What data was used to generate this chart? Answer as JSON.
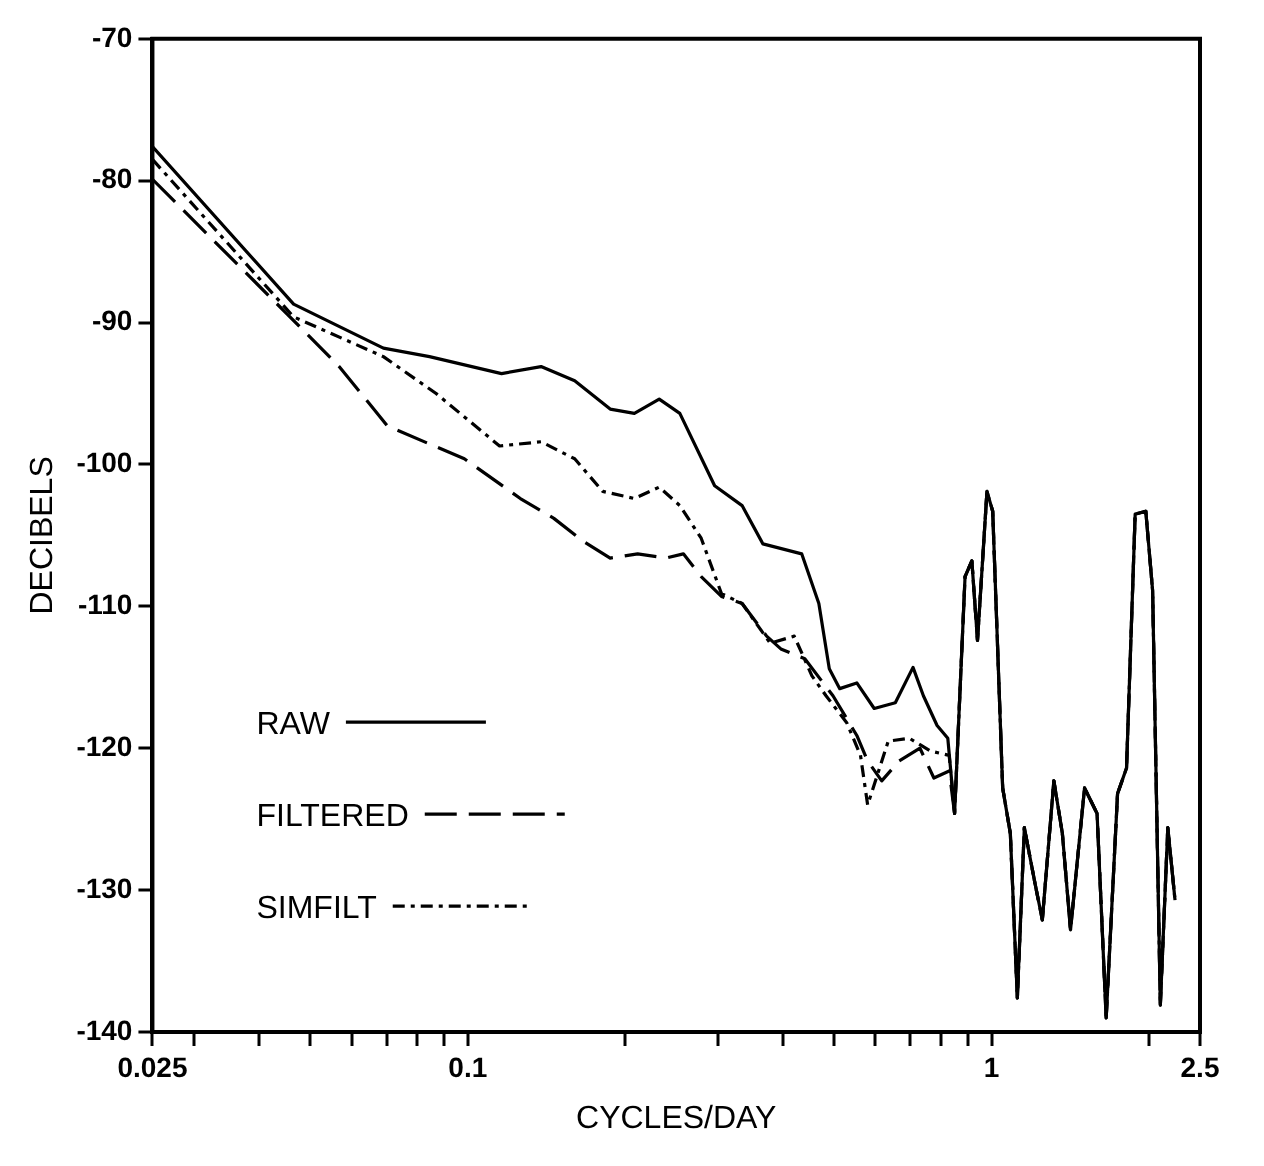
{
  "chart_data": {
    "type": "line",
    "xlabel": "CYCLES/DAY",
    "ylabel": "DECIBELS",
    "log": "x",
    "xlim": [
      0.025,
      2.5
    ],
    "ylim": [
      -140,
      -70
    ],
    "xticks": [
      0.025,
      {
        "value": 0.03,
        "label": null
      },
      {
        "value": 0.04,
        "label": null
      },
      {
        "value": 0.05,
        "label": null
      },
      {
        "value": 0.06,
        "label": null
      },
      {
        "value": 0.07,
        "label": null
      },
      {
        "value": 0.08,
        "label": null
      },
      {
        "value": 0.09,
        "label": null
      },
      0.1,
      {
        "value": 0.2,
        "label": null
      },
      {
        "value": 0.3,
        "label": null
      },
      {
        "value": 0.4,
        "label": null
      },
      {
        "value": 0.5,
        "label": null
      },
      {
        "value": 0.6,
        "label": null
      },
      {
        "value": 0.7,
        "label": null
      },
      {
        "value": 0.8,
        "label": null
      },
      {
        "value": 0.9,
        "label": null
      },
      1,
      {
        "value": 2,
        "label": null
      },
      2.5
    ],
    "yticks": [
      -140,
      -130,
      -120,
      -110,
      -100,
      -90,
      -80,
      -70
    ],
    "grid": false,
    "legend": "bottom left",
    "marker": "none",
    "series": [
      {
        "name": "RAW",
        "color": "#000000",
        "line_style": "solid",
        "x": [
          0.025,
          0.0465,
          0.069,
          0.0845,
          0.116,
          0.138,
          0.16,
          0.187,
          0.208,
          0.232,
          0.254,
          0.296,
          0.334,
          0.366,
          0.434,
          0.468,
          0.49,
          0.513,
          0.553,
          0.597,
          0.655,
          0.708,
          0.741,
          0.787,
          0.825,
          0.85,
          0.89,
          0.917,
          0.94,
          0.98,
          1.005,
          1.05,
          1.086,
          1.12,
          1.155,
          1.21,
          1.25,
          1.315,
          1.365,
          1.415,
          1.505,
          1.59,
          1.655,
          1.74,
          1.81,
          1.88,
          1.97,
          2.03,
          2.1,
          2.17,
          2.24
        ],
        "values": [
          -77.6,
          -88.7,
          -91.8,
          -92.4,
          -93.6,
          -93.1,
          -94.1,
          -96.1,
          -96.4,
          -95.4,
          -96.4,
          -101.5,
          -102.9,
          -105.6,
          -106.3,
          -109.8,
          -114.4,
          -115.8,
          -115.4,
          -117.2,
          -116.8,
          -114.3,
          -116.3,
          -118.4,
          -119.3,
          -124.6,
          -107.9,
          -106.8,
          -112.4,
          -101.9,
          -103.3,
          -122.8,
          -126,
          -137.6,
          -125.6,
          -129.5,
          -132.1,
          -122.3,
          -126,
          -132.8,
          -122.8,
          -124.6,
          -139,
          -123.2,
          -121.4,
          -103.5,
          -103.3,
          -108.9,
          -138.1,
          -125.6,
          -130.7
        ]
      },
      {
        "name": "FILTERED",
        "color": "#000000",
        "line_style": "dashed",
        "x": [
          0.025,
          0.0452,
          0.0568,
          0.0703,
          0.0985,
          0.126,
          0.146,
          0.166,
          0.187,
          0.211,
          0.239,
          0.258,
          0.279,
          0.305,
          0.334,
          0.372,
          0.396,
          0.44,
          0.498,
          0.553,
          0.58,
          0.617,
          0.666,
          0.73,
          0.776,
          0.83,
          0.85,
          0.89,
          0.917,
          0.94,
          0.98,
          1.005,
          1.05,
          1.086,
          1.12,
          1.155,
          1.21,
          1.25,
          1.315,
          1.365,
          1.415,
          1.505,
          1.59,
          1.655,
          1.74,
          1.81,
          1.88,
          1.97,
          2.03,
          2.1,
          2.17,
          2.24
        ],
        "values": [
          -79.9,
          -89.4,
          -93.1,
          -97.3,
          -99.6,
          -102.4,
          -103.8,
          -105.4,
          -106.6,
          -106.3,
          -106.6,
          -106.3,
          -107.9,
          -109.3,
          -109.8,
          -112.1,
          -113,
          -113.7,
          -116.3,
          -119.1,
          -120.9,
          -122.3,
          -120.9,
          -120,
          -122.1,
          -121.6,
          -124.6,
          -107.9,
          -106.8,
          -112.4,
          -101.9,
          -103.3,
          -122.8,
          -126,
          -137.6,
          -125.6,
          -129.5,
          -132.1,
          -122.3,
          -126,
          -132.8,
          -122.8,
          -124.6,
          -139,
          -123.2,
          -121.4,
          -103.5,
          -103.3,
          -108.9,
          -138.1,
          -125.6,
          -130.7
        ]
      },
      {
        "name": "SIMFILT",
        "color": "#000000",
        "line_style": "dotted",
        "x": [
          0.025,
          0.0465,
          0.069,
          0.087,
          0.115,
          0.138,
          0.16,
          0.181,
          0.208,
          0.232,
          0.254,
          0.279,
          0.305,
          0.334,
          0.378,
          0.42,
          0.454,
          0.483,
          0.529,
          0.562,
          0.58,
          0.635,
          0.697,
          0.764,
          0.83,
          0.85,
          0.89,
          0.917,
          0.94,
          0.98,
          1.005,
          1.05,
          1.086,
          1.12,
          1.155,
          1.21,
          1.25,
          1.315,
          1.365,
          1.415,
          1.505,
          1.59,
          1.655,
          1.74,
          1.81,
          1.88,
          1.97,
          2.03,
          2.1,
          2.17,
          2.24
        ],
        "values": [
          -78.5,
          -89.6,
          -92.4,
          -95,
          -98.7,
          -98.4,
          -99.6,
          -101.9,
          -102.4,
          -101.6,
          -102.9,
          -105.2,
          -109.1,
          -109.8,
          -112.6,
          -112.1,
          -114.9,
          -116.3,
          -118.2,
          -120.5,
          -124,
          -119.5,
          -119.3,
          -120.2,
          -120.5,
          -124.6,
          -107.9,
          -106.8,
          -112.4,
          -101.9,
          -103.3,
          -122.8,
          -126,
          -137.6,
          -125.6,
          -129.5,
          -132.1,
          -122.3,
          -126,
          -132.8,
          -122.8,
          -124.6,
          -139,
          -123.2,
          -121.4,
          -103.5,
          -103.3,
          -108.9,
          -138.1,
          -125.6,
          -130.7
        ]
      }
    ]
  }
}
